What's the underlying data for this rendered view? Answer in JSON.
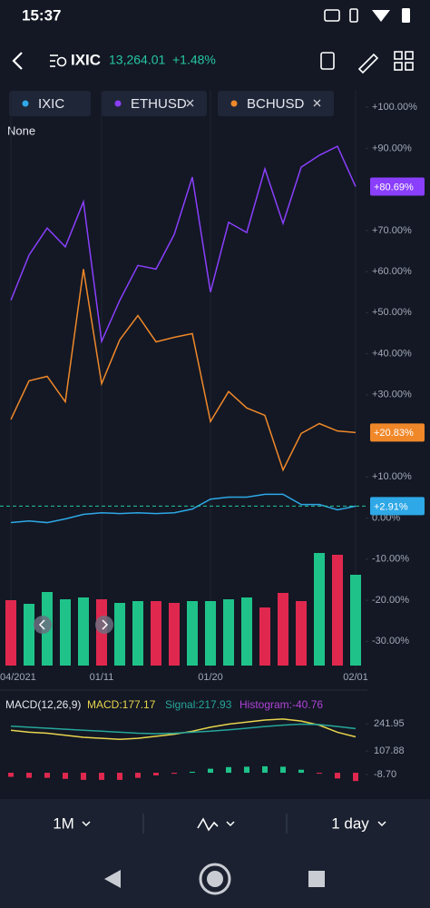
{
  "status_bar": {
    "time": "15:37"
  },
  "header": {
    "symbol": "IXIC",
    "price": "13,264.01",
    "change": "+1.48%"
  },
  "legend_note": "None",
  "toolbar": {
    "range": "1M",
    "interval": "1 day"
  },
  "chart_data": [
    {
      "type": "line",
      "categories": [
        "04/2021",
        null,
        null,
        null,
        null,
        "01/11",
        null,
        null,
        null,
        null,
        null,
        "01/20",
        null,
        null,
        null,
        null,
        null,
        null,
        null,
        "02/01"
      ],
      "ylim": [
        -37,
        104
      ],
      "yticks": [
        {
          "value": 100,
          "label": "+100.00%"
        },
        {
          "value": 90,
          "label": "+90.00%"
        },
        {
          "value": 70,
          "label": "+70.00%"
        },
        {
          "value": 60,
          "label": "+60.00%"
        },
        {
          "value": 50,
          "label": "+50.00%"
        },
        {
          "value": 40,
          "label": "+40.00%"
        },
        {
          "value": 30,
          "label": "+30.00%"
        },
        {
          "value": 10,
          "label": "+10.00%"
        },
        {
          "value": 0,
          "label": "0.00%"
        },
        {
          "value": -10,
          "label": "-10.00%"
        },
        {
          "value": -20,
          "label": "-20.00%"
        },
        {
          "value": -30,
          "label": "-30.00%"
        }
      ],
      "series": [
        {
          "name": "IXIC",
          "color": "#2ea8e6",
          "values": [
            -1.1,
            -0.7,
            -1.1,
            -0.2,
            0.9,
            1.3,
            1.1,
            1.3,
            1.1,
            1.3,
            2.2,
            4.6,
            5.1,
            5.1,
            5.8,
            5.8,
            3.3,
            3.3,
            2.0,
            2.91
          ],
          "value_labels": [
            null,
            null,
            null,
            null,
            null,
            null,
            null,
            null,
            null,
            null,
            null,
            null,
            null,
            null,
            null,
            null,
            null,
            null,
            null,
            "+2.91%"
          ]
        },
        {
          "name": "ETHUSD",
          "color": "#8a3ffc",
          "values": [
            53,
            64,
            70.6,
            66,
            77,
            43,
            53,
            61.5,
            60.6,
            69,
            83,
            55,
            72,
            69.5,
            85,
            71.7,
            85.4,
            88.3,
            90.5,
            80.69
          ],
          "value_labels": [
            null,
            null,
            null,
            null,
            null,
            null,
            null,
            null,
            null,
            null,
            null,
            null,
            null,
            null,
            null,
            null,
            null,
            null,
            null,
            "+80.69%"
          ]
        },
        {
          "name": "BCHUSD",
          "color": "#f0882a",
          "values": [
            24,
            33.4,
            34.5,
            28.3,
            60.6,
            32.7,
            43.4,
            49.3,
            42.9,
            44,
            44.9,
            23.5,
            30.8,
            26.8,
            25,
            11.7,
            20.6,
            23,
            21.2,
            20.83
          ],
          "value_labels": [
            null,
            null,
            null,
            null,
            null,
            null,
            null,
            null,
            null,
            null,
            null,
            null,
            null,
            null,
            null,
            null,
            null,
            null,
            null,
            "+20.83%"
          ]
        }
      ]
    },
    {
      "type": "bar",
      "ylim": [
        0,
        130
      ],
      "values": [
        72,
        68,
        81,
        73,
        75,
        73,
        69,
        71,
        71,
        69,
        71,
        71,
        73,
        75,
        64,
        80,
        71,
        124,
        122,
        100
      ],
      "colors": [
        "#e0284f",
        "#1fc38a",
        "#1fc38a",
        "#1fc38a",
        "#1fc38a",
        "#e0284f",
        "#1fc38a",
        "#1fc38a",
        "#e0284f",
        "#e0284f",
        "#1fc38a",
        "#1fc38a",
        "#1fc38a",
        "#1fc38a",
        "#e0284f",
        "#e0284f",
        "#e0284f",
        "#1fc38a",
        "#e0284f",
        "#1fc38a"
      ]
    },
    {
      "type": "line",
      "title": "MACD(12,26,9)",
      "ylim": [
        -49,
        296
      ],
      "yticks": [
        241.95,
        107.88,
        {
          "value": -8.7,
          "label": "-8.70"
        }
      ],
      "series": [
        {
          "name": "MACD:177.17",
          "color": "#e8d44d",
          "values": [
            210,
            200,
            195,
            185,
            175,
            170,
            165,
            170,
            180,
            190,
            205,
            225,
            240,
            250,
            260,
            265,
            255,
            235,
            200,
            177.17
          ]
        },
        {
          "name": "Signal:217.93",
          "color": "#26a69a",
          "values": [
            230,
            225,
            220,
            215,
            210,
            205,
            200,
            195,
            193,
            195,
            200,
            205,
            212,
            220,
            228,
            235,
            240,
            238,
            228,
            217.93
          ]
        },
        {
          "name": "Histogram:-40.76",
          "color": "#b042d8",
          "type": "bar",
          "up_color": "#1fc38a",
          "down_color": "#e0284f",
          "values": [
            -20,
            -25,
            -25,
            -30,
            -35,
            -35,
            -35,
            -25,
            -13,
            -5,
            5,
            20,
            28,
            30,
            32,
            30,
            15,
            -3,
            -28,
            -40.76
          ]
        }
      ]
    }
  ]
}
